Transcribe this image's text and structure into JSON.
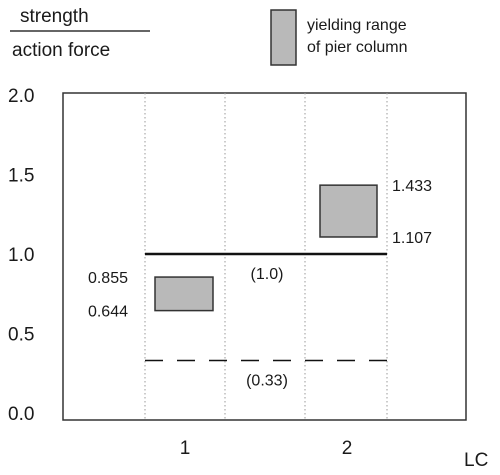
{
  "chart_data": {
    "type": "bar",
    "ylabel_top": "strength",
    "ylabel_bottom": "action force",
    "xlabel": "LC",
    "ylim": [
      0,
      2
    ],
    "yticks": [
      "0.0",
      "0.5",
      "1.0",
      "1.5",
      "2.0"
    ],
    "categories": [
      "1",
      "2"
    ],
    "legend": {
      "label_line1": "yielding range",
      "label_line2": "of pier column",
      "placement": "top-right"
    },
    "series": [
      {
        "name": "yielding range of pier column",
        "ranges": [
          {
            "category": "1",
            "low": 0.644,
            "high": 0.855,
            "low_label": "0.644",
            "high_label": "0.855"
          },
          {
            "category": "2",
            "low": 1.107,
            "high": 1.433,
            "low_label": "1.107",
            "high_label": "1.433"
          }
        ]
      }
    ],
    "reference_lines": [
      {
        "value": 1.0,
        "label": "(1.0)",
        "style": "solid"
      },
      {
        "value": 0.33,
        "label": "(0.33)",
        "style": "dashed"
      }
    ],
    "grid": "vertical-dotted",
    "colors": {
      "range_fill": "#b9b9b9",
      "range_stroke": "#333333",
      "axis": "#333333",
      "grid": "#9a9a9a"
    }
  }
}
